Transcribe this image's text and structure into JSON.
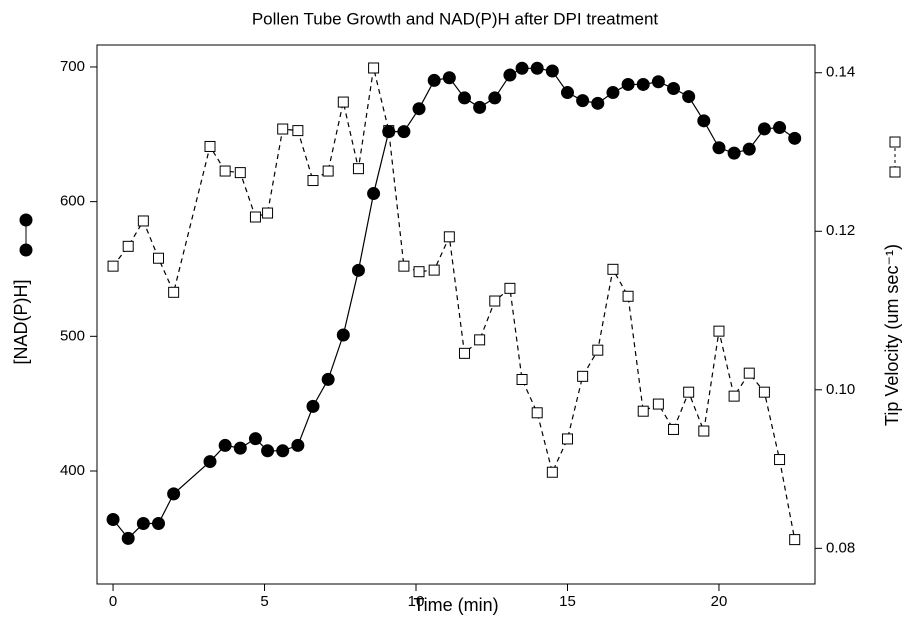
{
  "chart_data": {
    "type": "line",
    "title": "Pollen Tube Growth and NAD(P)H after DPI treatment",
    "x_label": "Time (min)",
    "y_label": "[NAD(P)H]",
    "y2_label": "Tip Velocity (um sec⁻¹)",
    "x": [
      0,
      0.5,
      1,
      1.5,
      2,
      3.2,
      3.7,
      4.2,
      4.7,
      5.1,
      5.6,
      6.1,
      6.6,
      7.1,
      7.6,
      8.1,
      8.6,
      9.1,
      9.6,
      10.1,
      10.6,
      11.1,
      11.6,
      12.1,
      12.6,
      13.1,
      13.5,
      14,
      14.5,
      15,
      15.5,
      16,
      16.5,
      17,
      17.5,
      18,
      18.5,
      19,
      19.5,
      20,
      20.5,
      21,
      21.5,
      22,
      22.5
    ],
    "series": [
      {
        "color": "#000000",
        "marker": "circle",
        "linestyle": "solid",
        "values": [
          364,
          350,
          361,
          361,
          383,
          407,
          419,
          417,
          424,
          415,
          415,
          419,
          448,
          468,
          501,
          549,
          606,
          652,
          652,
          669,
          690,
          692,
          677,
          670,
          677,
          694,
          699,
          699,
          697,
          681,
          675,
          673,
          681,
          687,
          687,
          689,
          684,
          678,
          660,
          640,
          636,
          639,
          654,
          655,
          647
        ]
      },
      {
        "color": "#000000",
        "marker": "square",
        "linestyle": "dashed",
        "axis": "y2",
        "values": [
          0.1156,
          0.1181,
          0.1213,
          0.1166,
          0.1123,
          0.1307,
          0.1276,
          0.1274,
          0.1218,
          0.1223,
          0.1329,
          0.1327,
          0.1264,
          0.1276,
          0.1363,
          0.1279,
          0.1406,
          0.1327,
          0.1156,
          0.1149,
          0.1151,
          0.1193,
          0.1046,
          0.1063,
          0.1112,
          0.1128,
          0.1013,
          0.0971,
          0.0896,
          0.0938,
          0.1017,
          0.105,
          0.1152,
          0.1118,
          0.0973,
          0.0982,
          0.095,
          0.0997,
          0.0948,
          0.1074,
          0.0992,
          0.1021,
          0.0997,
          0.0912,
          0.0811
        ]
      }
    ],
    "xlim": [
      -0.53,
      23.17
    ],
    "xticks": [
      0,
      5,
      10,
      15,
      20
    ],
    "ylim": [
      316.1,
      716.3
    ],
    "yticks": [
      400,
      500,
      600,
      700
    ],
    "y2lim": [
      0.0755,
      0.1435
    ],
    "y2ticks": [
      0.08,
      {
        "value": 0.1,
        "label": "0.10"
      },
      0.12,
      0.14
    ]
  }
}
